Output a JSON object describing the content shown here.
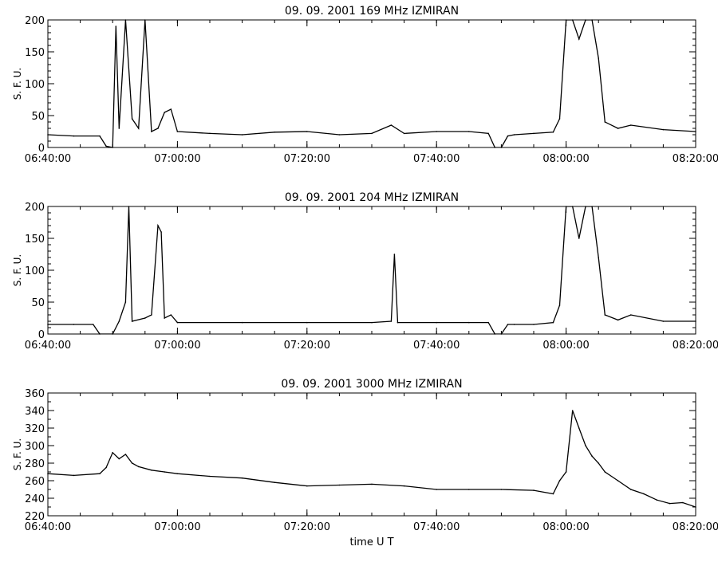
{
  "chart_data": [
    {
      "type": "line",
      "title": "09.  09.  2001    169  MHz    IZMIRAN",
      "ylabel": "S. F. U.",
      "xlabel": "",
      "ylim": [
        0,
        200
      ],
      "yticks": [
        0,
        50,
        100,
        150,
        200
      ],
      "xlim": [
        "06:40:00",
        "08:20:00"
      ],
      "xticks": [
        "06:40:00",
        "07:00:00",
        "07:20:00",
        "07:40:00",
        "08:00:00",
        "08:20:00"
      ],
      "series": [
        {
          "x": [
            "06:40:00",
            "06:44:00",
            "06:48:00",
            "06:49:00",
            "06:50:00",
            "06:50:30",
            "06:51:00",
            "06:52:00",
            "06:53:00",
            "06:54:00",
            "06:55:00",
            "06:56:00",
            "06:57:00",
            "06:58:00",
            "06:59:00",
            "07:00:00",
            "07:05:00",
            "07:10:00",
            "07:15:00",
            "07:20:00",
            "07:25:00",
            "07:30:00",
            "07:33:00",
            "07:35:00",
            "07:40:00",
            "07:45:00",
            "07:48:00",
            "07:49:00",
            "07:50:00",
            "07:51:00",
            "07:52:00",
            "07:55:00",
            "07:58:00",
            "07:59:00",
            "08:00:00",
            "08:01:00",
            "08:02:00",
            "08:03:00",
            "08:04:00",
            "08:05:00",
            "08:06:00",
            "08:08:00",
            "08:10:00",
            "08:15:00",
            "08:20:00"
          ],
          "y": [
            20,
            18,
            18,
            2,
            0,
            190,
            30,
            200,
            45,
            30,
            200,
            25,
            30,
            55,
            60,
            25,
            22,
            20,
            24,
            25,
            20,
            22,
            35,
            22,
            25,
            25,
            22,
            0,
            0,
            18,
            20,
            22,
            24,
            45,
            200,
            200,
            170,
            200,
            200,
            140,
            40,
            30,
            35,
            28,
            25
          ]
        }
      ]
    },
    {
      "type": "line",
      "title": "09.  09.  2001    204  MHz    IZMIRAN",
      "ylabel": "S. F. U.",
      "xlabel": "",
      "ylim": [
        0,
        200
      ],
      "yticks": [
        0,
        50,
        100,
        150,
        200
      ],
      "xlim": [
        "06:40:00",
        "08:20:00"
      ],
      "xticks": [
        "06:40:00",
        "07:00:00",
        "07:20:00",
        "07:40:00",
        "08:00:00",
        "08:20:00"
      ],
      "series": [
        {
          "x": [
            "06:40:00",
            "06:44:00",
            "06:47:00",
            "06:48:00",
            "06:50:00",
            "06:51:00",
            "06:52:00",
            "06:52:30",
            "06:53:00",
            "06:55:00",
            "06:56:00",
            "06:57:00",
            "06:57:30",
            "06:58:00",
            "06:59:00",
            "07:00:00",
            "07:10:00",
            "07:20:00",
            "07:30:00",
            "07:33:00",
            "07:33:30",
            "07:34:00",
            "07:40:00",
            "07:45:00",
            "07:48:00",
            "07:49:00",
            "07:50:00",
            "07:51:00",
            "07:52:00",
            "07:55:00",
            "07:58:00",
            "07:59:00",
            "08:00:00",
            "08:01:00",
            "08:02:00",
            "08:03:00",
            "08:04:00",
            "08:05:00",
            "08:06:00",
            "08:08:00",
            "08:10:00",
            "08:15:00",
            "08:20:00"
          ],
          "y": [
            15,
            15,
            15,
            0,
            0,
            20,
            50,
            200,
            20,
            25,
            30,
            170,
            160,
            25,
            30,
            18,
            18,
            18,
            18,
            20,
            125,
            18,
            18,
            18,
            18,
            0,
            0,
            15,
            15,
            15,
            18,
            45,
            200,
            200,
            150,
            200,
            200,
            120,
            30,
            22,
            30,
            20,
            20
          ]
        }
      ]
    },
    {
      "type": "line",
      "title": "09.  09.  2001    3000  MHz    IZMIRAN",
      "ylabel": "S. F. U.",
      "xlabel": "time   U T",
      "ylim": [
        220,
        360
      ],
      "yticks": [
        220,
        240,
        260,
        280,
        300,
        320,
        340,
        360
      ],
      "xlim": [
        "06:40:00",
        "08:20:00"
      ],
      "xticks": [
        "06:40:00",
        "07:00:00",
        "07:20:00",
        "07:40:00",
        "08:00:00",
        "08:20:00"
      ],
      "series": [
        {
          "x": [
            "06:40:00",
            "06:44:00",
            "06:48:00",
            "06:49:00",
            "06:50:00",
            "06:51:00",
            "06:52:00",
            "06:53:00",
            "06:54:00",
            "06:56:00",
            "06:58:00",
            "07:00:00",
            "07:05:00",
            "07:10:00",
            "07:15:00",
            "07:20:00",
            "07:25:00",
            "07:30:00",
            "07:35:00",
            "07:40:00",
            "07:45:00",
            "07:50:00",
            "07:55:00",
            "07:58:00",
            "07:59:00",
            "08:00:00",
            "08:01:00",
            "08:02:00",
            "08:03:00",
            "08:04:00",
            "08:05:00",
            "08:06:00",
            "08:08:00",
            "08:10:00",
            "08:12:00",
            "08:14:00",
            "08:16:00",
            "08:18:00",
            "08:20:00"
          ],
          "y": [
            268,
            266,
            268,
            275,
            292,
            285,
            290,
            280,
            276,
            272,
            270,
            268,
            265,
            263,
            258,
            254,
            255,
            256,
            254,
            250,
            250,
            250,
            249,
            245,
            260,
            270,
            340,
            320,
            300,
            288,
            280,
            270,
            260,
            250,
            245,
            238,
            234,
            235,
            230
          ]
        }
      ]
    }
  ]
}
